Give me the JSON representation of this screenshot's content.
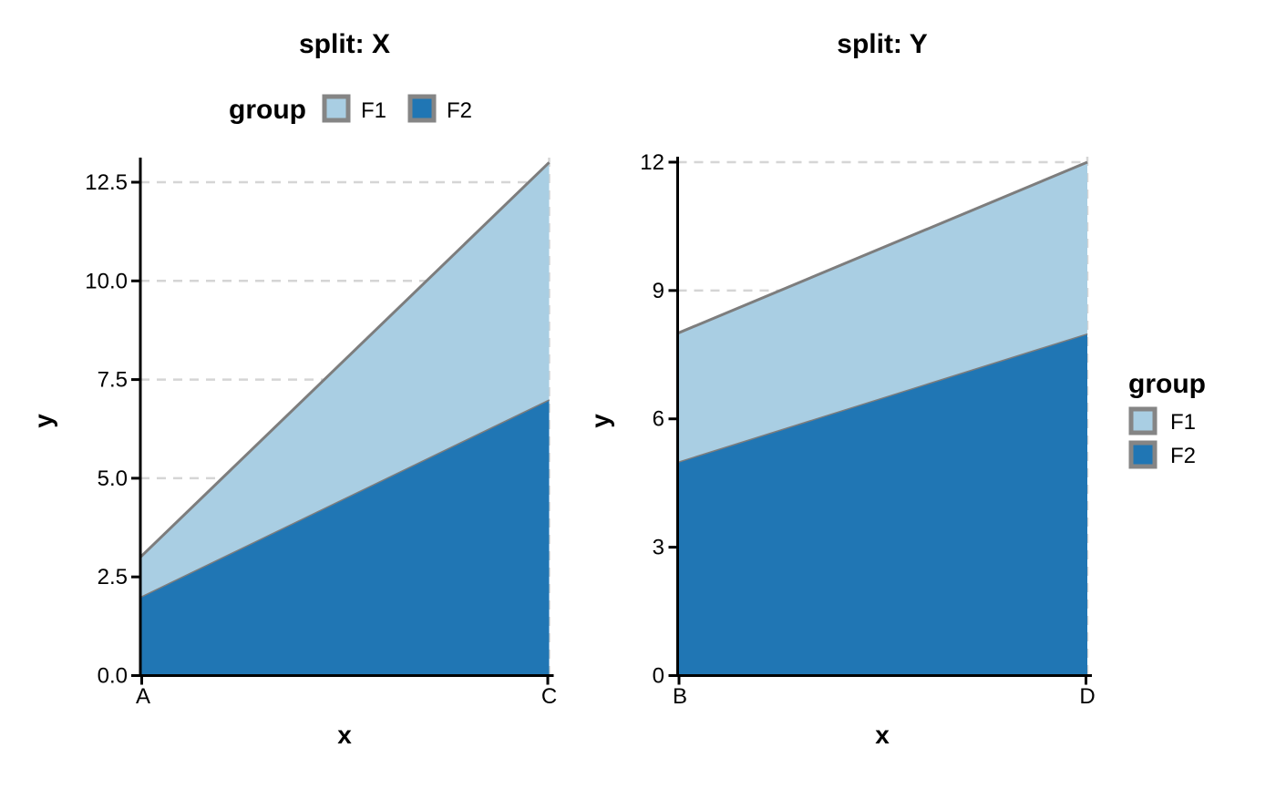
{
  "figure": {
    "background": "#FFFFFF"
  },
  "colors": {
    "f1": "#A9CEE3",
    "f2": "#2076B4",
    "area_edge": "#7D7D7D",
    "grid": "#D5D5D5",
    "axis": "#000000",
    "text": "#000000",
    "swatch_border": "#858585"
  },
  "legend": {
    "title": "group",
    "entries": [
      {
        "label": "F1",
        "color_key": "f1"
      },
      {
        "label": "F2",
        "color_key": "f2"
      }
    ]
  },
  "chart_data": [
    {
      "type": "area",
      "stacked": true,
      "title": "split: X",
      "xlabel": "x",
      "ylabel": "y",
      "categories": [
        "A",
        "C"
      ],
      "series": [
        {
          "name": "F1",
          "values": [
            1,
            6
          ]
        },
        {
          "name": "F2",
          "values": [
            2,
            7
          ]
        }
      ],
      "stacked_totals": [
        3,
        13
      ],
      "ylim": [
        0,
        13
      ],
      "y_ticks": [
        0,
        2.5,
        5,
        7.5,
        10,
        12.5
      ],
      "y_tick_labels": [
        "0.0",
        "2.5",
        "5.0",
        "7.5",
        "10.0",
        "12.5"
      ],
      "grid": "dashed-horizontal-and-edge",
      "legend_position": "top"
    },
    {
      "type": "area",
      "stacked": true,
      "title": "split: Y",
      "xlabel": "x",
      "ylabel": "y",
      "categories": [
        "B",
        "D"
      ],
      "series": [
        {
          "name": "F1",
          "values": [
            3,
            4
          ]
        },
        {
          "name": "F2",
          "values": [
            5,
            8
          ]
        }
      ],
      "stacked_totals": [
        8,
        12
      ],
      "ylim": [
        0,
        12
      ],
      "y_ticks": [
        0,
        3,
        6,
        9,
        12
      ],
      "y_tick_labels": [
        "0",
        "3",
        "6",
        "9",
        "12"
      ],
      "grid": "dashed-horizontal-and-edge",
      "legend_position": "right"
    }
  ]
}
